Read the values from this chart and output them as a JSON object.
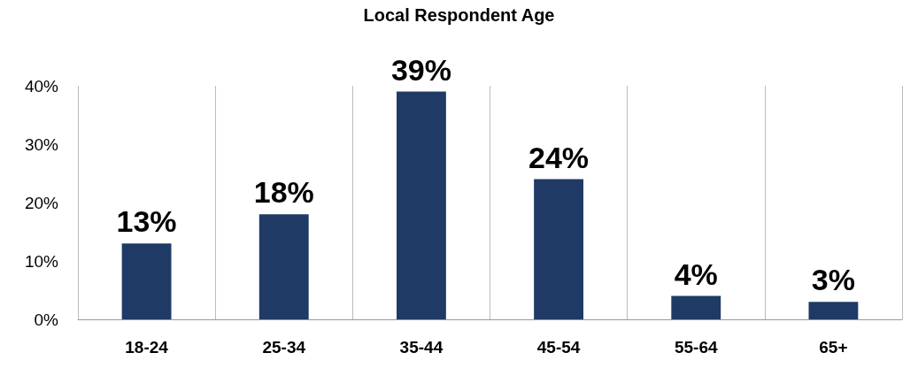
{
  "chart_data": {
    "type": "bar",
    "title": "Local Respondent Age",
    "categories": [
      "18-24",
      "25-34",
      "35-44",
      "45-54",
      "55-64",
      "65+"
    ],
    "values": [
      13,
      18,
      39,
      24,
      4,
      3
    ],
    "value_labels": [
      "13%",
      "18%",
      "39%",
      "24%",
      "4%",
      "3%"
    ],
    "color": "#1f3a64",
    "ylim": [
      0,
      40
    ],
    "yticks": [
      {
        "value": 0,
        "label": "0%"
      },
      {
        "value": 10,
        "label": "10%"
      },
      {
        "value": 20,
        "label": "20%"
      },
      {
        "value": 30,
        "label": "30%"
      },
      {
        "value": 40,
        "label": "40%"
      }
    ],
    "grid": "x"
  }
}
